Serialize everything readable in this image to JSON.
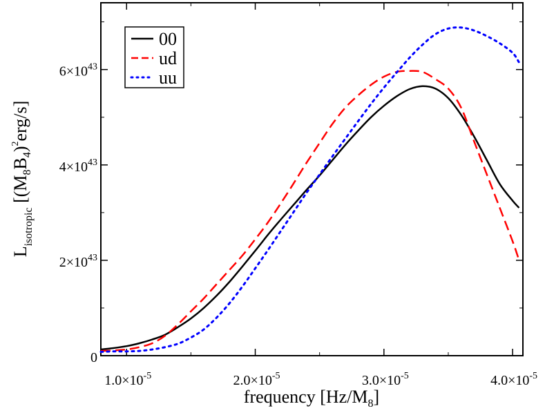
{
  "chart_data": {
    "type": "line",
    "title": "",
    "xlabel": {
      "main": "frequency [Hz/M",
      "sub": "8",
      "close": "]"
    },
    "ylabel": {
      "L": "L",
      "sub": "isotropic",
      "mid": " [(M",
      "sub8": "8",
      "B": "B",
      "sub4": "4",
      "close": ")",
      "sup2": "2",
      "tail": "erg/s]"
    },
    "xlim": [
      8e-06,
      4.08e-05
    ],
    "ylim": [
      0,
      7.4e+43
    ],
    "x_ticks": [
      {
        "value": 1e-05,
        "mant": "1.0",
        "exp": "-5"
      },
      {
        "value": 2e-05,
        "mant": "2.0",
        "exp": "-5"
      },
      {
        "value": 3e-05,
        "mant": "3.0",
        "exp": "-5"
      },
      {
        "value": 4e-05,
        "mant": "4.0",
        "exp": "-5"
      }
    ],
    "y_ticks": [
      {
        "value": 0,
        "mant": "0",
        "exp": ""
      },
      {
        "value": 2e+43,
        "mant": "2",
        "exp": "43"
      },
      {
        "value": 4e+43,
        "mant": "4",
        "exp": "43"
      },
      {
        "value": 6e+43,
        "mant": "6",
        "exp": "43"
      }
    ],
    "legend_position": "top-left",
    "series": [
      {
        "name": "00",
        "color": "#000000",
        "dash": "solid",
        "x": [
          8e-06,
          9e-06,
          1e-05,
          1.1e-05,
          1.2e-05,
          1.3e-05,
          1.4e-05,
          1.5e-05,
          1.6e-05,
          1.7e-05,
          1.8e-05,
          1.9e-05,
          2e-05,
          2.1e-05,
          2.2e-05,
          2.3e-05,
          2.4e-05,
          2.5e-05,
          2.6e-05,
          2.7e-05,
          2.8e-05,
          2.9e-05,
          3e-05,
          3.1e-05,
          3.2e-05,
          3.3e-05,
          3.4e-05,
          3.5e-05,
          3.6e-05,
          3.7e-05,
          3.8e-05,
          3.9e-05,
          4e-05,
          4.05e-05
        ],
        "y": [
          1.3e+42,
          1.6e+42,
          2e+42,
          2.6e+42,
          3.4e+42,
          4.4e+42,
          6e+42,
          7.8e+42,
          1e+43,
          1.26e+43,
          1.55e+43,
          1.87e+43,
          2.2e+43,
          2.54e+43,
          2.86e+43,
          3.17e+43,
          3.48e+43,
          3.78e+43,
          4.1e+43,
          4.42e+43,
          4.72e+43,
          5e+43,
          5.24e+43,
          5.44e+43,
          5.59e+43,
          5.65e+43,
          5.6e+43,
          5.4e+43,
          5.05e+43,
          4.6e+43,
          4.1e+43,
          3.6e+43,
          3.25e+43,
          3.1e+43
        ]
      },
      {
        "name": "ud",
        "color": "#ff0000",
        "dash": "dashed",
        "x": [
          8e-06,
          9e-06,
          1e-05,
          1.1e-05,
          1.2e-05,
          1.3e-05,
          1.4e-05,
          1.5e-05,
          1.6e-05,
          1.7e-05,
          1.8e-05,
          1.9e-05,
          2e-05,
          2.1e-05,
          2.2e-05,
          2.3e-05,
          2.4e-05,
          2.5e-05,
          2.6e-05,
          2.7e-05,
          2.8e-05,
          2.9e-05,
          3e-05,
          3.1e-05,
          3.2e-05,
          3.3e-05,
          3.4e-05,
          3.5e-05,
          3.6e-05,
          3.7e-05,
          3.8e-05,
          3.9e-05,
          4e-05,
          4.05e-05
        ],
        "y": [
          1e+42,
          1.1e+42,
          1.3e+42,
          1.8e+42,
          2.6e+42,
          4.2e+42,
          6.6e+42,
          9.3e+42,
          1.2e+43,
          1.5e+43,
          1.8e+43,
          2.1e+43,
          2.44e+43,
          2.8e+43,
          3.2e+43,
          3.62e+43,
          4.05e+43,
          4.46e+43,
          4.86e+43,
          5.2e+43,
          5.46e+43,
          5.68e+43,
          5.85e+43,
          5.95e+43,
          5.97e+43,
          5.95e+43,
          5.8e+43,
          5.6e+43,
          5.2e+43,
          4.5e+43,
          3.8e+43,
          3.1e+43,
          2.4e+43,
          2e+43
        ]
      },
      {
        "name": "uu",
        "color": "#0000ff",
        "dash": "dotted",
        "x": [
          8e-06,
          9e-06,
          1e-05,
          1.1e-05,
          1.2e-05,
          1.3e-05,
          1.4e-05,
          1.5e-05,
          1.6e-05,
          1.7e-05,
          1.8e-05,
          1.9e-05,
          2e-05,
          2.1e-05,
          2.2e-05,
          2.3e-05,
          2.4e-05,
          2.5e-05,
          2.6e-05,
          2.7e-05,
          2.8e-05,
          2.9e-05,
          3e-05,
          3.1e-05,
          3.2e-05,
          3.3e-05,
          3.4e-05,
          3.5e-05,
          3.6e-05,
          3.7e-05,
          3.8e-05,
          3.9e-05,
          4e-05,
          4.05e-05
        ],
        "y": [
          8e+41,
          9e+41,
          9e+41,
          1e+42,
          1.3e+42,
          1.8e+42,
          2.5e+42,
          3.8e+42,
          5.5e+42,
          8e+42,
          1.1e+43,
          1.45e+43,
          1.83e+43,
          2.22e+43,
          2.62e+43,
          3.02e+43,
          3.42e+43,
          3.8e+43,
          4.18e+43,
          4.55e+43,
          4.92e+43,
          5.28e+43,
          5.62e+43,
          5.94e+43,
          6.25e+43,
          6.52e+43,
          6.74e+43,
          6.86e+43,
          6.88e+43,
          6.82e+43,
          6.7e+43,
          6.55e+43,
          6.35e+43,
          6.15e+43
        ]
      }
    ]
  }
}
